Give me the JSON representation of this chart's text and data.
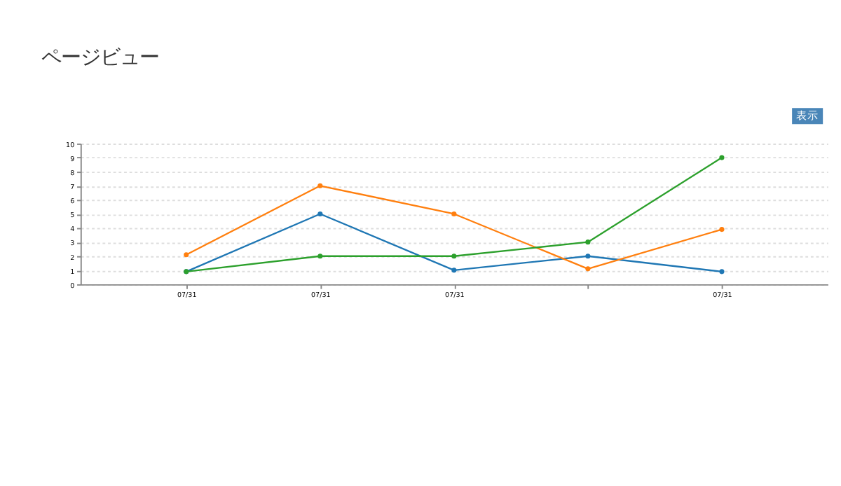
{
  "chart_data": {
    "type": "line",
    "title": "ページビュー",
    "categories": [
      "07/31",
      "07/31",
      "07/31",
      null,
      "07/31"
    ],
    "series": [
      {
        "color": "#1f77b4",
        "values": [
          0.9,
          5,
          1,
          2,
          0.9
        ]
      },
      {
        "color": "#ff7f0e",
        "values": [
          2.1,
          7,
          5,
          1.1,
          3.9
        ]
      },
      {
        "color": "#2ca02c",
        "values": [
          0.9,
          2,
          2,
          3,
          9
        ]
      }
    ],
    "ylim": [
      0,
      10
    ],
    "yticks": [
      0,
      1,
      2,
      3,
      4,
      5,
      6,
      7,
      8,
      9,
      10
    ],
    "grid": "y",
    "legend": false,
    "marker": "circle",
    "line_style": "solid",
    "annotations": [
      "表示"
    ]
  }
}
